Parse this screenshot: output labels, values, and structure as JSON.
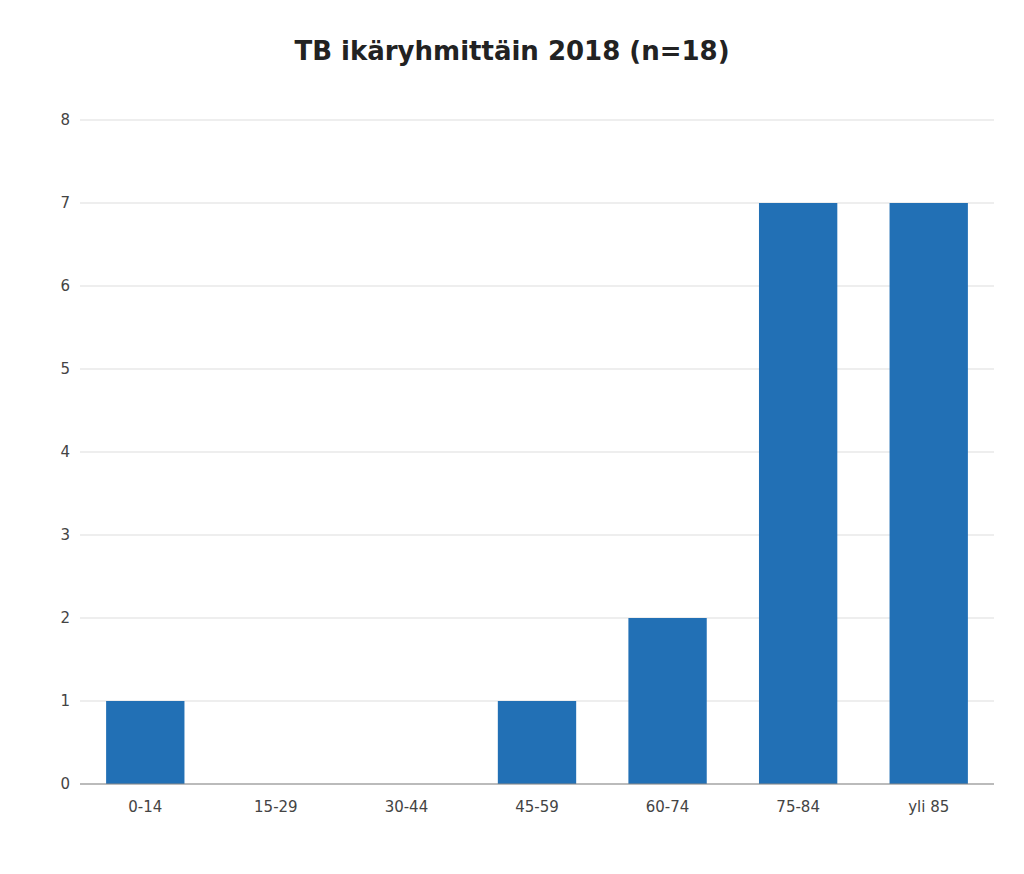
{
  "chart_data": {
    "type": "bar",
    "title": "TB ikäryhmittäin 2018 (n=18)",
    "categories": [
      "0-14",
      "15-29",
      "30-44",
      "45-59",
      "60-74",
      "75-84",
      "yli 85"
    ],
    "values": [
      1,
      0,
      0,
      1,
      2,
      7,
      7
    ],
    "color": "#2270B5",
    "ylim": [
      0,
      8
    ],
    "yticks": [
      0,
      1,
      2,
      3,
      4,
      5,
      6,
      7,
      8
    ],
    "grid": true
  }
}
